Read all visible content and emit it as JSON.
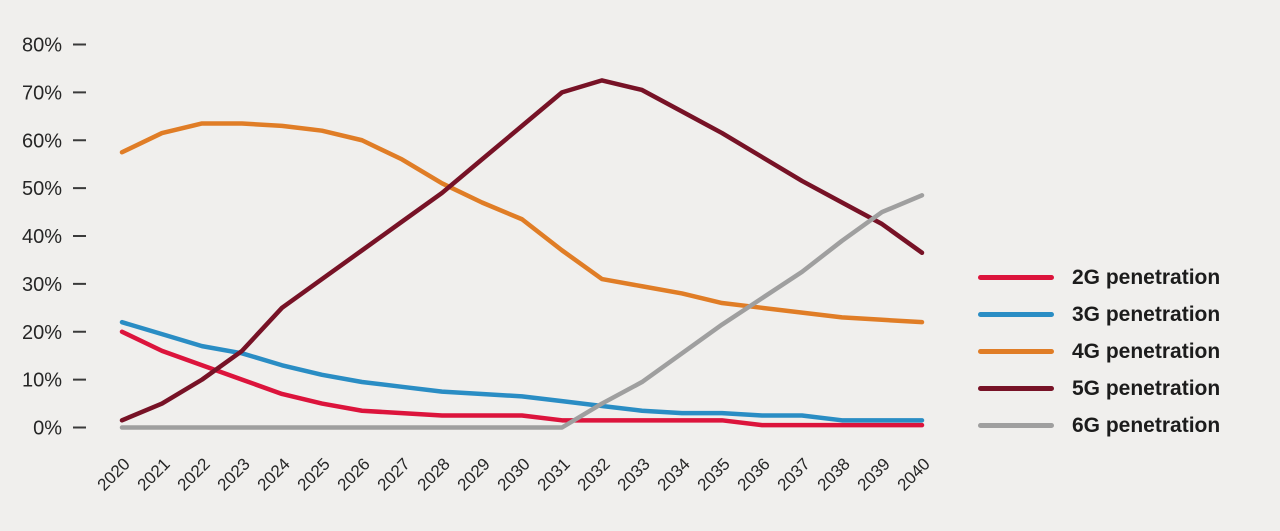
{
  "chart_data": {
    "type": "line",
    "title": "",
    "xlabel": "",
    "ylabel": "",
    "grid": false,
    "legend_position": "right",
    "background": "#f0efed",
    "x": [
      2020,
      2021,
      2022,
      2023,
      2024,
      2025,
      2026,
      2027,
      2028,
      2029,
      2030,
      2031,
      2032,
      2033,
      2034,
      2035,
      2036,
      2037,
      2038,
      2039,
      2040
    ],
    "x_tick_labels": [
      "2020",
      "2021",
      "2022",
      "2023",
      "2024",
      "2025",
      "2026",
      "2027",
      "2028",
      "2029",
      "2030",
      "2031",
      "2032",
      "2033",
      "2034",
      "2035",
      "2036",
      "2037",
      "2038",
      "2039",
      "2040"
    ],
    "y_axis": {
      "min": 0,
      "max": 80,
      "ticks": [
        80,
        70,
        60,
        50,
        40,
        30,
        20,
        10,
        0
      ],
      "tick_labels": [
        "80%",
        "70%",
        "60%",
        "50%",
        "40%",
        "30%",
        "20%",
        "10%",
        "0%"
      ]
    },
    "series": [
      {
        "name": "2G penetration",
        "color": "#dc143c",
        "values": [
          20,
          16,
          13,
          10,
          7,
          5,
          3.5,
          3,
          2.5,
          2.5,
          2.5,
          1.5,
          1.5,
          1.5,
          1.5,
          1.5,
          0.5,
          0.5,
          0.5,
          0.5,
          0.5
        ]
      },
      {
        "name": "3G penetration",
        "color": "#2a8dc4",
        "values": [
          22,
          19.5,
          17,
          15.5,
          13,
          11,
          9.5,
          8.5,
          7.5,
          7,
          6.5,
          5.5,
          4.5,
          3.5,
          3,
          3,
          2.5,
          2.5,
          1.5,
          1.5,
          1.5
        ]
      },
      {
        "name": "4G penetration",
        "color": "#e07d26",
        "values": [
          57.5,
          61.5,
          63.5,
          63.5,
          63,
          62,
          60,
          56,
          51,
          47,
          43.5,
          37,
          31,
          29.5,
          28,
          26,
          25,
          24,
          23,
          22.5,
          22
        ]
      },
      {
        "name": "5G penetration",
        "color": "#771226",
        "values": [
          1.5,
          5,
          10,
          16,
          25,
          31,
          37,
          43,
          49,
          56,
          63,
          70,
          72.5,
          70.5,
          66,
          61.5,
          56.5,
          51.5,
          47,
          42.5,
          36.5
        ]
      },
      {
        "name": "6G penetration",
        "color": "#9f9f9f",
        "values": [
          0,
          0,
          0,
          0,
          0,
          0,
          0,
          0,
          0,
          0,
          0,
          0,
          5,
          9.5,
          15.5,
          21.5,
          27,
          32.5,
          39,
          45,
          48.5
        ]
      }
    ]
  }
}
